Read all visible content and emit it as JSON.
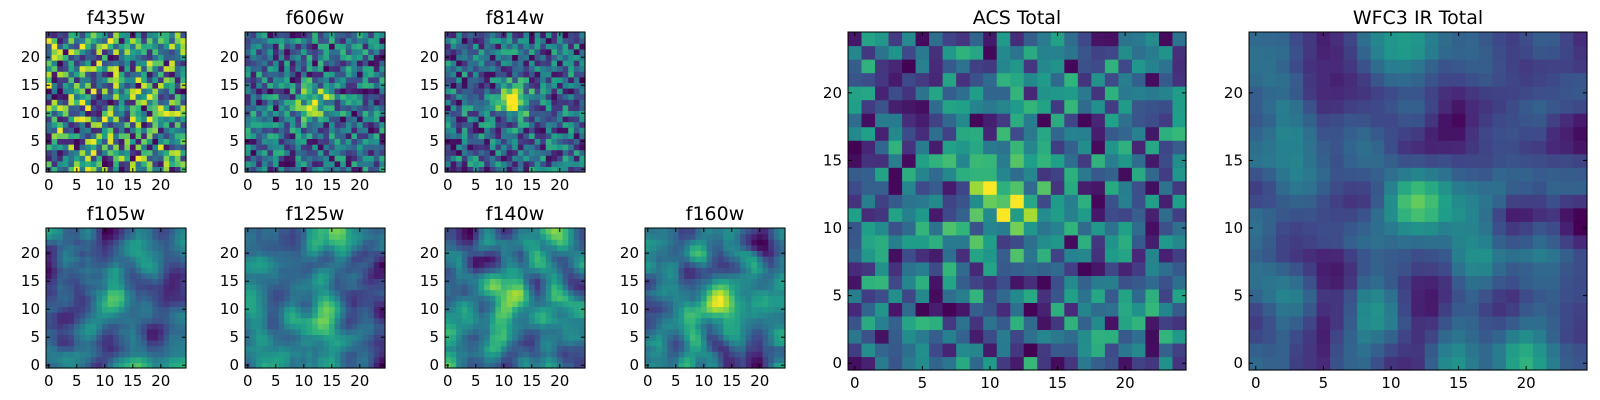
{
  "figure": {
    "panels": [
      {
        "key": "f435w",
        "title": "f435w",
        "xticks": [
          "0",
          "5",
          "10",
          "15",
          "20"
        ],
        "yticks": [
          "0",
          "5",
          "10",
          "15",
          "20"
        ],
        "source": "small_noise",
        "blob": 0.0,
        "blob_center": [
          12,
          12
        ]
      },
      {
        "key": "f606w",
        "title": "f606w",
        "xticks": [
          "0",
          "5",
          "10",
          "15",
          "20"
        ],
        "yticks": [
          "0",
          "5",
          "10",
          "15",
          "20"
        ],
        "source": "small_noise",
        "blob": 0.55,
        "blob_center": [
          12,
          12
        ]
      },
      {
        "key": "f814w",
        "title": "f814w",
        "xticks": [
          "0",
          "5",
          "10",
          "15",
          "20"
        ],
        "yticks": [
          "0",
          "5",
          "10",
          "15",
          "20"
        ],
        "source": "small_noise",
        "blob": 0.6,
        "blob_center": [
          12,
          12
        ]
      },
      {
        "key": "f105w",
        "title": "f105w",
        "xticks": [
          "0",
          "5",
          "10",
          "15",
          "20"
        ],
        "yticks": [
          "0",
          "5",
          "10",
          "15",
          "20"
        ],
        "source": "smooth_noise",
        "blob": 0.45,
        "blob_center": [
          12,
          12
        ]
      },
      {
        "key": "f125w",
        "title": "f125w",
        "xticks": [
          "0",
          "5",
          "10",
          "15",
          "20"
        ],
        "yticks": [
          "0",
          "5",
          "10",
          "15",
          "20"
        ],
        "source": "smooth_noise",
        "blob": 0.35,
        "blob_center": [
          14,
          12
        ]
      },
      {
        "key": "f140w",
        "title": "f140w",
        "xticks": [
          "0",
          "5",
          "10",
          "15",
          "20"
        ],
        "yticks": [
          "0",
          "5",
          "10",
          "15",
          "20"
        ],
        "source": "smooth_noise",
        "blob": 0.3,
        "blob_center": [
          12,
          13
        ]
      },
      {
        "key": "f160w",
        "title": "f160w",
        "xticks": [
          "0",
          "5",
          "10",
          "15",
          "20"
        ],
        "yticks": [
          "0",
          "5",
          "10",
          "15",
          "20"
        ],
        "source": "smooth_noise",
        "blob": 0.5,
        "blob_center": [
          12,
          12
        ]
      },
      {
        "key": "acs_total",
        "title": "ACS Total",
        "xticks": [
          "0",
          "5",
          "10",
          "15",
          "20"
        ],
        "yticks": [
          "0",
          "5",
          "10",
          "15",
          "20"
        ],
        "source": "big_noise",
        "blob": 0.55,
        "blob_center": [
          11,
          12
        ]
      },
      {
        "key": "wfc3_total",
        "title": "WFC3 IR Total",
        "xticks": [
          "0",
          "5",
          "10",
          "15",
          "20"
        ],
        "yticks": [
          "0",
          "5",
          "10",
          "15",
          "20"
        ],
        "source": "smooth_noise",
        "blob": 0.6,
        "blob_center": [
          12,
          12
        ]
      }
    ],
    "colormap": "viridis"
  },
  "chart_data": [
    {
      "type": "heatmap",
      "title": "f435w",
      "x_range": [
        0,
        24
      ],
      "y_range": [
        0,
        24
      ],
      "grid_size": 25,
      "source_center": [
        12,
        12
      ]
    },
    {
      "type": "heatmap",
      "title": "f606w",
      "x_range": [
        0,
        24
      ],
      "y_range": [
        0,
        24
      ],
      "grid_size": 25,
      "source_center": [
        12,
        12
      ]
    },
    {
      "type": "heatmap",
      "title": "f814w",
      "x_range": [
        0,
        24
      ],
      "y_range": [
        0,
        24
      ],
      "grid_size": 25,
      "source_center": [
        12,
        12
      ]
    },
    {
      "type": "heatmap",
      "title": "f105w",
      "x_range": [
        0,
        24
      ],
      "y_range": [
        0,
        24
      ],
      "grid_size": 25,
      "source_center": [
        12,
        12
      ]
    },
    {
      "type": "heatmap",
      "title": "f125w",
      "x_range": [
        0,
        24
      ],
      "y_range": [
        0,
        24
      ],
      "grid_size": 25,
      "source_center": [
        14,
        12
      ]
    },
    {
      "type": "heatmap",
      "title": "f140w",
      "x_range": [
        0,
        24
      ],
      "y_range": [
        0,
        24
      ],
      "grid_size": 25,
      "source_center": [
        12,
        13
      ]
    },
    {
      "type": "heatmap",
      "title": "f160w",
      "x_range": [
        0,
        24
      ],
      "y_range": [
        0,
        24
      ],
      "grid_size": 25,
      "source_center": [
        12,
        12
      ]
    },
    {
      "type": "heatmap",
      "title": "ACS Total",
      "x_range": [
        0,
        24
      ],
      "y_range": [
        0,
        24
      ],
      "grid_size": 25,
      "source_center": [
        11,
        12
      ]
    },
    {
      "type": "heatmap",
      "title": "WFC3 IR Total",
      "x_range": [
        0,
        24
      ],
      "y_range": [
        0,
        24
      ],
      "grid_size": 25,
      "source_center": [
        12,
        12
      ]
    }
  ]
}
